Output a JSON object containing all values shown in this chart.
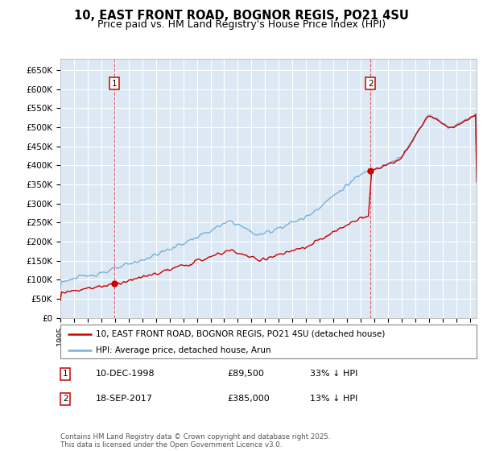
{
  "title": "10, EAST FRONT ROAD, BOGNOR REGIS, PO21 4SU",
  "subtitle": "Price paid vs. HM Land Registry's House Price Index (HPI)",
  "ytick_values": [
    0,
    50000,
    100000,
    150000,
    200000,
    250000,
    300000,
    350000,
    400000,
    450000,
    500000,
    550000,
    600000,
    650000
  ],
  "ylim": [
    0,
    680000
  ],
  "xlim_start": 1995,
  "xlim_end": 2025.5,
  "bg_color": "#dce9f5",
  "grid_color": "#ffffff",
  "line1_color": "#cc0000",
  "line2_color": "#7ab0d4",
  "sale1_x": 1998.95,
  "sale1_y": 89500,
  "sale2_x": 2017.72,
  "sale2_y": 385000,
  "legend_line1": "10, EAST FRONT ROAD, BOGNOR REGIS, PO21 4SU (detached house)",
  "legend_line2": "HPI: Average price, detached house, Arun",
  "note1_num": "1",
  "note1_date": "10-DEC-1998",
  "note1_price": "£89,500",
  "note1_hpi": "33% ↓ HPI",
  "note2_num": "2",
  "note2_date": "18-SEP-2017",
  "note2_price": "£385,000",
  "note2_hpi": "13% ↓ HPI",
  "footer": "Contains HM Land Registry data © Crown copyright and database right 2025.\nThis data is licensed under the Open Government Licence v3.0.",
  "title_fontsize": 10.5,
  "subtitle_fontsize": 9
}
